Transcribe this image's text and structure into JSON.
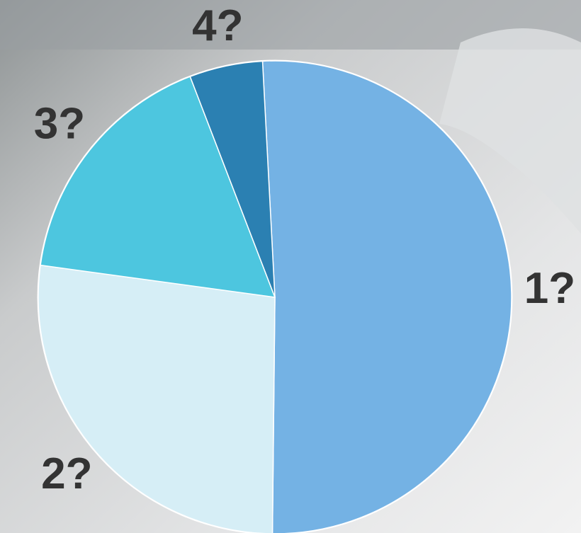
{
  "chart_data": {
    "type": "pie",
    "categories": [
      "1?",
      "2?",
      "3?",
      "4?"
    ],
    "values": [
      51,
      27,
      17,
      5
    ],
    "colors": [
      "#74b2e4",
      "#d6eef6",
      "#4dc6df",
      "#2b80b2"
    ],
    "start_angle": -3
  }
}
